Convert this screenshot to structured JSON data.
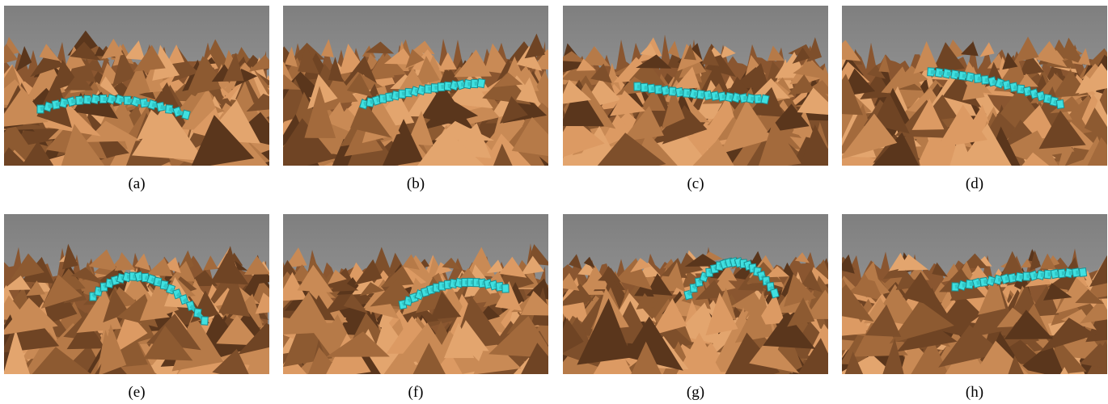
{
  "captions": [
    "(a)",
    "(b)",
    "(c)",
    "(d)",
    "(e)",
    "(f)",
    "(g)",
    "(h)"
  ]
}
